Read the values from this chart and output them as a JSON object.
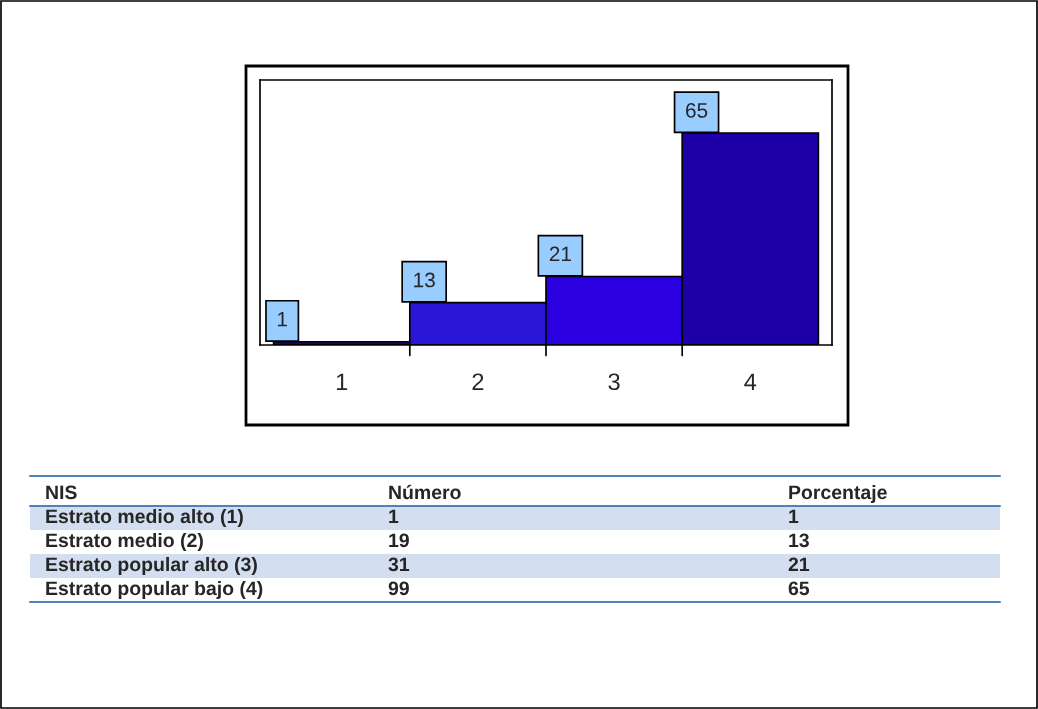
{
  "chart_data": {
    "type": "bar",
    "categories": [
      "1",
      "2",
      "3",
      "4"
    ],
    "values": [
      1,
      13,
      21,
      65
    ],
    "colors": [
      "#1a0080",
      "#2a17d6",
      "#2a00e0",
      "#1e00a8"
    ],
    "data_labels": true,
    "grid": false,
    "annotations": [
      "NIS",
      "Número",
      "Porcentaje",
      "Estrato medio alto (1)",
      "1",
      "1",
      "Estrato medio (2)",
      "19",
      "13",
      "Estrato popular alto (3)",
      "31",
      "21",
      "Estrato popular bajo (4)",
      "99",
      "65"
    ]
  }
}
